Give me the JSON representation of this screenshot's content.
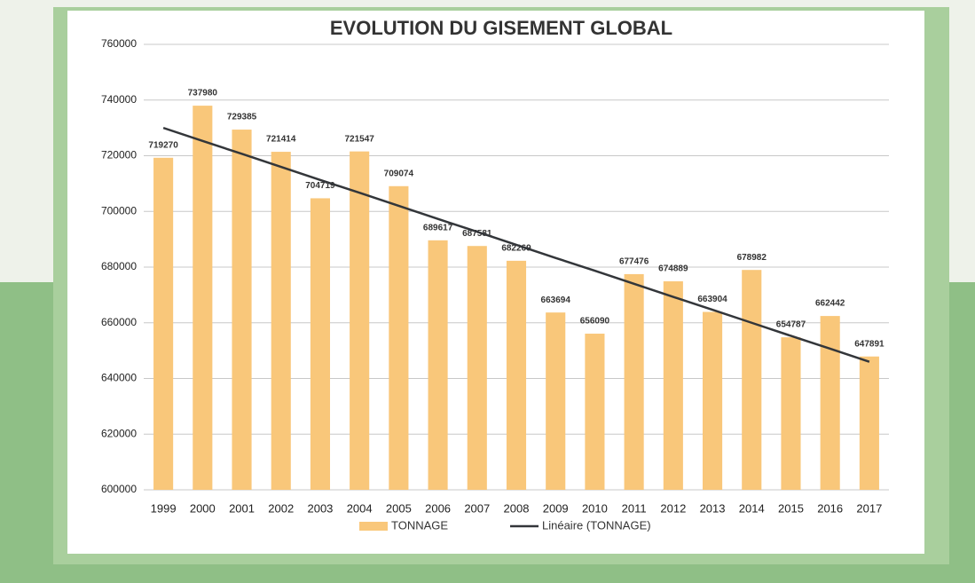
{
  "chart_data": {
    "type": "bar",
    "title": "EVOLUTION DU GISEMENT GLOBAL",
    "categories": [
      "1999",
      "2000",
      "2001",
      "2002",
      "2003",
      "2004",
      "2005",
      "2006",
      "2007",
      "2008",
      "2009",
      "2010",
      "2011",
      "2012",
      "2013",
      "2014",
      "2015",
      "2016",
      "2017"
    ],
    "series": [
      {
        "name": "TONNAGE",
        "color": "#f9c77a",
        "values": [
          719270,
          737980,
          729385,
          721414,
          704719,
          721547,
          709074,
          689617,
          687581,
          682269,
          663694,
          656090,
          677476,
          674889,
          663904,
          678982,
          654787,
          662442,
          647891
        ]
      },
      {
        "name": "Linéaire (TONNAGE)",
        "type": "line",
        "color": "#33363a",
        "values": [
          730000,
          725300,
          720700,
          716000,
          711300,
          706700,
          702000,
          697300,
          692700,
          688000,
          683300,
          678700,
          674000,
          669300,
          664700,
          660000,
          655300,
          650700,
          646000
        ]
      }
    ],
    "ylim": [
      600000,
      760000
    ],
    "yticks": [
      600000,
      620000,
      640000,
      660000,
      680000,
      700000,
      720000,
      740000,
      760000
    ],
    "grid": true,
    "legend": "bottom"
  }
}
